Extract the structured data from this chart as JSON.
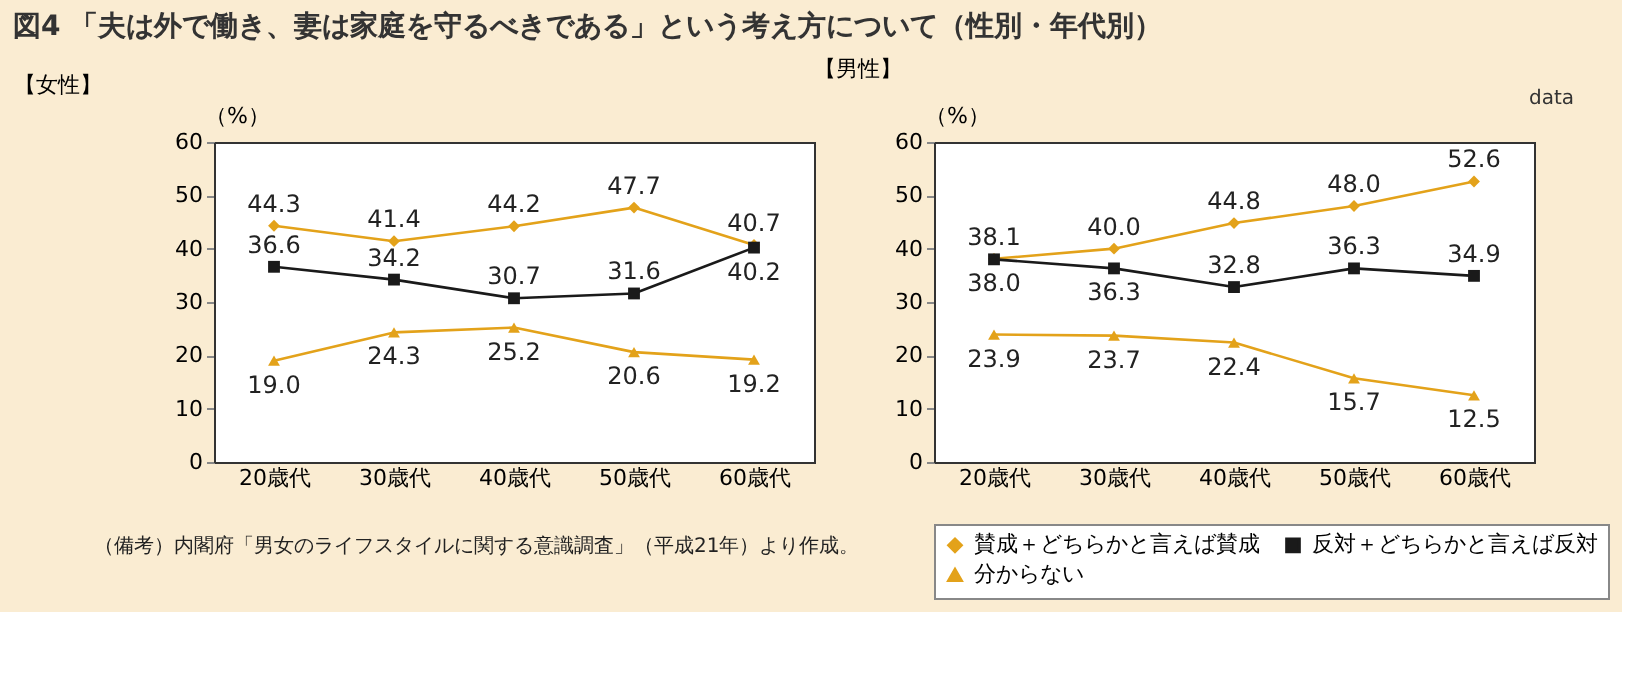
{
  "chart_data": [
    {
      "type": "line",
      "title": "図4 「夫は外で働き、妻は家庭を守るべきである」という考え方について（性別・年代別）",
      "subtitle": "【女性】",
      "ylabel": "（%）",
      "categories": [
        "20歳代",
        "30歳代",
        "40歳代",
        "50歳代",
        "60歳代"
      ],
      "series": [
        {
          "color": "#e3a21a",
          "marker": "diamond",
          "values": [
            44.3,
            41.4,
            44.2,
            47.7,
            40.7
          ]
        },
        {
          "color": "#1a1a1a",
          "marker": "square",
          "values": [
            36.6,
            34.2,
            30.7,
            31.6,
            40.2
          ]
        },
        {
          "color": "#e3a21a",
          "marker": "triangle",
          "values": [
            19.0,
            24.3,
            25.2,
            20.6,
            19.2
          ],
          "value_labels": [
            "19.0",
            "24.3",
            "25.2",
            "20.6",
            "19.2"
          ]
        }
      ],
      "ylim": [
        0,
        60
      ],
      "yticks": [
        0,
        10,
        20,
        30,
        40,
        50,
        60
      ],
      "grid": false,
      "legend": false,
      "data_labels": true,
      "annotations": [
        "（備考）内閣府「男女のライフスタイルに関する意識調査」（平成21年）より作成。"
      ]
    },
    {
      "type": "line",
      "subtitle": "【男性】",
      "ylabel": "（%）",
      "categories": [
        "20歳代",
        "30歳代",
        "40歳代",
        "50歳代",
        "60歳代"
      ],
      "series": [
        {
          "name": "賛成＋どちらかと言えば賛成",
          "color": "#e3a21a",
          "marker": "diamond",
          "values": [
            38.1,
            40.0,
            44.8,
            48.0,
            52.6
          ],
          "value_labels": [
            "38.1",
            "40.0",
            "44.8",
            "48.0",
            "52.6"
          ]
        },
        {
          "name": "反対＋どちらかと言えば反対",
          "color": "#1a1a1a",
          "marker": "square",
          "values": [
            38.0,
            36.3,
            32.8,
            36.3,
            34.9
          ],
          "value_labels": [
            "38.0",
            "36.3",
            "32.8",
            "36.3",
            "34.9"
          ]
        },
        {
          "name": "分からない",
          "color": "#e3a21a",
          "marker": "triangle",
          "values": [
            23.9,
            23.7,
            22.4,
            15.7,
            12.5
          ]
        }
      ],
      "ylim": [
        0,
        60
      ],
      "yticks": [
        0,
        10,
        20,
        30,
        40,
        50,
        60
      ],
      "grid": false,
      "legend": "bottom",
      "data_labels": true,
      "annotations": [
        "data"
      ]
    }
  ]
}
